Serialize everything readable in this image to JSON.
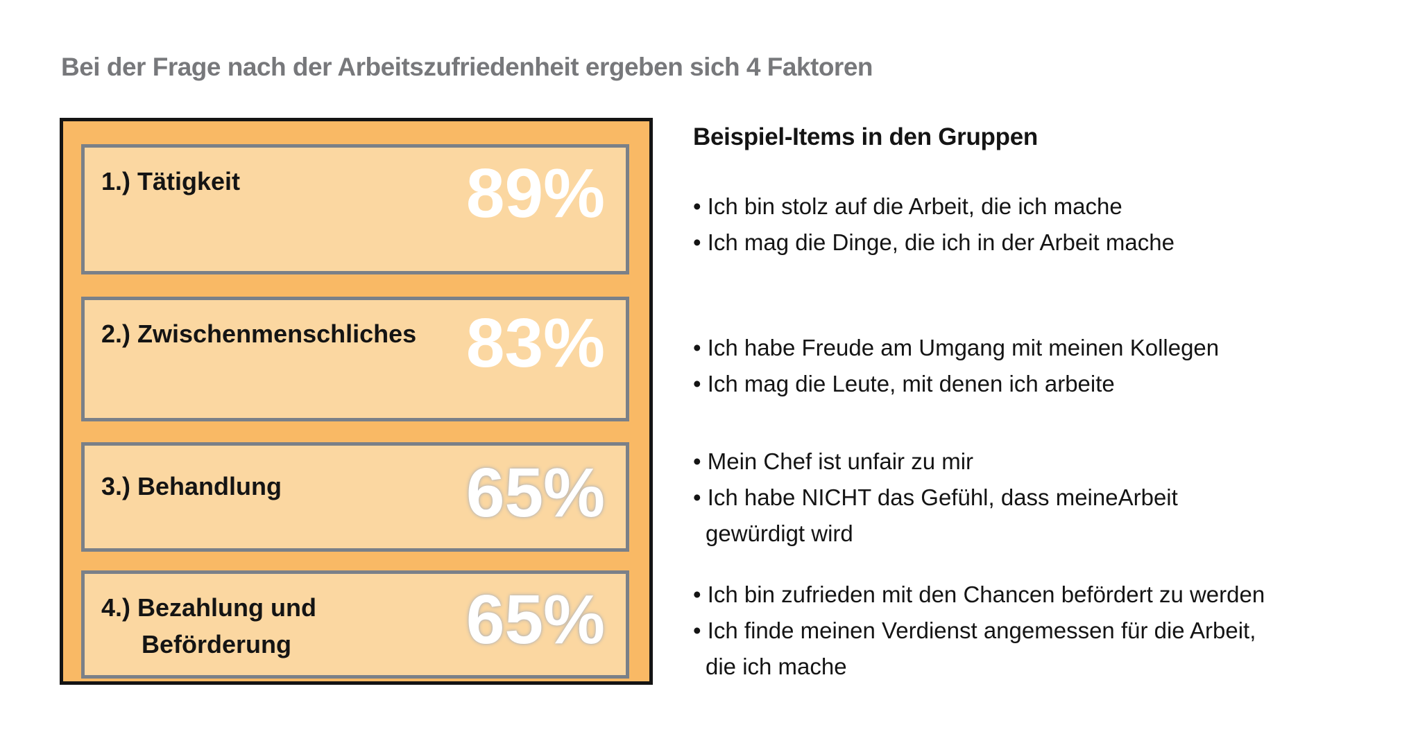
{
  "slide": {
    "title": "Bei der Frage nach der Arbeitszufriedenheit ergeben sich 4 Faktoren"
  },
  "factors": [
    {
      "label": "1.) Tätigkeit",
      "value": "89%"
    },
    {
      "label": "2.) Zwischenmenschliches",
      "value": "83%"
    },
    {
      "label": "3.) Behandlung",
      "value": "65%"
    },
    {
      "label": "4.) Bezahlung und",
      "label_line2": "Beförderung",
      "value": "65%"
    }
  ],
  "examples": {
    "heading": "Beispiel-Items in den Gruppen",
    "groups": [
      {
        "lines": [
          {
            "text": "Ich bin stolz auf die Arbeit, die ich mache"
          },
          {
            "text": "Ich mag die Dinge, die ich in der Arbeit mache"
          }
        ]
      },
      {
        "lines": [
          {
            "text": "Ich habe Freude am Umgang mit meinen Kollegen"
          },
          {
            "text": "Ich mag die Leute, mit denen ich arbeite"
          }
        ]
      },
      {
        "lines": [
          {
            "text": "Mein Chef ist unfair zu mir"
          },
          {
            "text": "Ich habe NICHT das Gefühl, dass meineArbeit"
          },
          {
            "text": "gewürdigt wird",
            "continuation": true
          }
        ]
      },
      {
        "lines": [
          {
            "text": "Ich bin zufrieden mit den Chancen befördert zu werden"
          },
          {
            "text": "Ich finde meinen Verdienst angemessen für die Arbeit,"
          },
          {
            "text": "die ich mache",
            "continuation": true
          }
        ]
      }
    ]
  },
  "colors": {
    "panel_fill": "#f9b965",
    "row_fill": "#fbd7a1",
    "row_border": "#7a8088",
    "panel_border": "#141414",
    "title_gray": "#77787b",
    "percent_text": "#ffffff",
    "body_text": "#141414"
  }
}
